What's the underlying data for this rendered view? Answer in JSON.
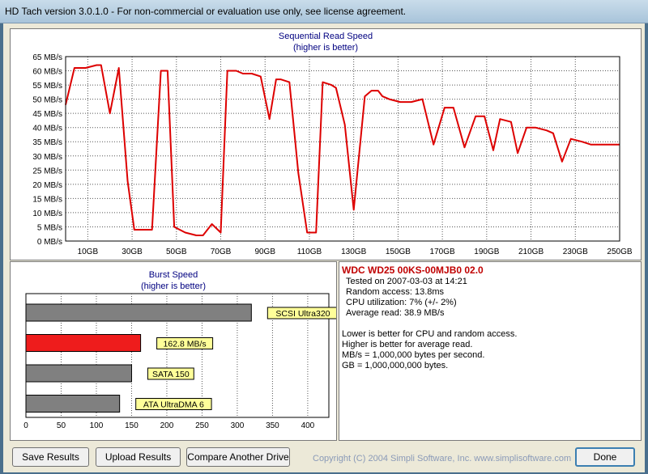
{
  "window": {
    "title": "HD Tach version 3.0.1.0  - For non-commercial or evaluation use only, see license agreement."
  },
  "chart_data": [
    {
      "type": "line",
      "title": "Sequential Read Speed",
      "subtitle": "(higher is better)",
      "y_ticks": [
        "0 MB/s",
        "5 MB/s",
        "10 MB/s",
        "15 MB/s",
        "20 MB/s",
        "25 MB/s",
        "30 MB/s",
        "35 MB/s",
        "40 MB/s",
        "45 MB/s",
        "50 MB/s",
        "55 MB/s",
        "60 MB/s",
        "65 MB/s"
      ],
      "x_ticks": [
        "10GB",
        "30GB",
        "50GB",
        "70GB",
        "90GB",
        "110GB",
        "130GB",
        "150GB",
        "170GB",
        "190GB",
        "210GB",
        "230GB",
        "250GB"
      ],
      "ylim": [
        0,
        65
      ],
      "xlim": [
        0,
        250
      ],
      "grid": true,
      "line_color": "#dd0000",
      "x": [
        0,
        4,
        9,
        14,
        16,
        20,
        24,
        28,
        31,
        36,
        39,
        43,
        46,
        49,
        54,
        59,
        62,
        66,
        70,
        73,
        77,
        80,
        84,
        88,
        92,
        95,
        97,
        101,
        105,
        109,
        113,
        116,
        120,
        122,
        126,
        130,
        135,
        138,
        141,
        143,
        146,
        151,
        156,
        161,
        166,
        171,
        175,
        180,
        185,
        189,
        193,
        196,
        201,
        204,
        208,
        212,
        217,
        220,
        224,
        228,
        233,
        237,
        241,
        246,
        250
      ],
      "y": [
        48,
        61,
        61,
        62,
        62,
        45,
        61,
        21,
        4,
        4,
        4,
        60,
        60,
        5,
        3,
        2,
        2,
        6,
        3,
        60,
        60,
        59,
        59,
        58,
        43,
        57,
        57,
        56,
        24,
        3,
        3,
        56,
        55,
        54,
        41,
        11,
        51,
        53,
        53,
        51,
        50,
        49,
        49,
        50,
        34,
        47,
        47,
        33,
        44,
        44,
        32,
        43,
        42,
        31,
        40,
        40,
        39,
        38,
        28,
        36,
        35,
        34,
        34,
        34,
        34
      ]
    },
    {
      "type": "bar",
      "title": "Burst Speed",
      "subtitle": "(higher is better)",
      "x_ticks": [
        "0",
        "50",
        "100",
        "150",
        "200",
        "250",
        "300",
        "350",
        "400"
      ],
      "xlim": [
        0,
        430
      ],
      "categories": [
        "SCSI Ultra320",
        "162.8 MB/s",
        "SATA 150",
        "ATA UltraDMA 6"
      ],
      "values": [
        320,
        162.8,
        150,
        133
      ],
      "colors": [
        "#808080",
        "#ee1c1c",
        "#808080",
        "#808080"
      ]
    }
  ],
  "info": {
    "drive": "WDC WD25 00KS-00MJB0 02.0",
    "tested": "Tested on 2007-03-03 at 14:21",
    "random_access": "Random access: 13.8ms",
    "cpu": "CPU utilization: 7% (+/- 2%)",
    "avg_read": "Average read: 38.9 MB/s",
    "note1": "Lower is better for CPU and random access.",
    "note2": "Higher is better for average read.",
    "note3": "MB/s = 1,000,000 bytes per second.",
    "note4": "GB = 1,000,000,000 bytes."
  },
  "buttons": {
    "save": "Save Results",
    "upload": "Upload Results",
    "compare": "Compare Another Drive",
    "done": "Done"
  },
  "copyright": "Copyright (C) 2004 Simpli Software, Inc. www.simplisoftware.com"
}
